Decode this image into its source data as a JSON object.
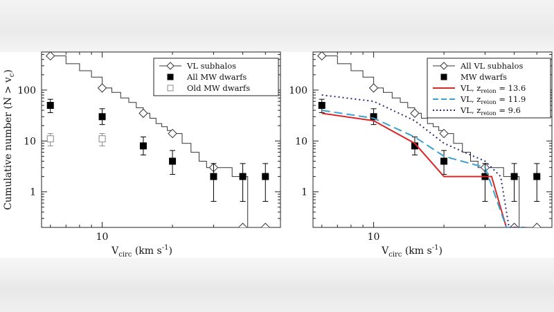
{
  "chart_data": [
    {
      "type": "scatter",
      "log_x": true,
      "log_y": true,
      "xlim": [
        5.5,
        58
      ],
      "ylim": [
        0.2,
        560
      ],
      "xlabel": "V_circ (km s^-1)",
      "ylabel": "Cumulative number (N > v_c)",
      "x_tick_labels": [
        "10"
      ],
      "y_tick_labels": [
        "1",
        "10",
        "100"
      ],
      "legend_position": "top-right",
      "legend": [
        "VL subhalos",
        "All MW dwarfs",
        "Old MW dwarfs"
      ],
      "series": [
        {
          "name": "VL subhalos",
          "style": "line",
          "color": "#333333",
          "x": [
            6,
            7,
            8,
            9,
            10,
            11,
            12,
            13,
            14,
            15,
            16,
            17,
            18,
            19,
            20,
            22,
            24,
            26,
            28,
            30,
            33,
            36,
            38,
            40,
            42,
            48
          ],
          "y": [
            470,
            330,
            240,
            180,
            110,
            90,
            70,
            57,
            45,
            35,
            28,
            22,
            19,
            16,
            14,
            9,
            6,
            4,
            3,
            3,
            3,
            2,
            2,
            2,
            0.2,
            0.2
          ]
        },
        {
          "name": "VL subhalos markers",
          "style": "diamond",
          "color": "#333333",
          "x": [
            6,
            10,
            15,
            20,
            30,
            40,
            50
          ],
          "y": [
            470,
            110,
            35,
            14,
            3,
            0.2,
            0.2
          ]
        },
        {
          "name": "All MW dwarfs",
          "style": "filled-square",
          "color": "#000000",
          "x": [
            6,
            10,
            15,
            20,
            30,
            40,
            50
          ],
          "y": [
            50,
            30,
            8,
            4,
            2,
            2,
            2
          ],
          "err_lo": [
            36,
            21,
            5.3,
            2.2,
            0.65,
            0.65,
            0.65
          ],
          "err_hi": [
            66,
            43,
            12,
            6.5,
            3.6,
            3.6,
            3.6
          ]
        },
        {
          "name": "Old MW dwarfs",
          "style": "open-square",
          "color": "#888888",
          "x": [
            6,
            10
          ],
          "y": [
            11,
            11
          ],
          "err_lo": [
            8,
            8
          ],
          "err_hi": [
            14,
            14
          ]
        }
      ]
    },
    {
      "type": "scatter",
      "log_x": true,
      "log_y": true,
      "xlim": [
        5.5,
        58
      ],
      "ylim": [
        0.2,
        560
      ],
      "xlabel": "V_circ (km s^-1)",
      "x_tick_labels": [
        "10"
      ],
      "y_tick_labels": [
        "1",
        "10",
        "100"
      ],
      "legend_position": "top-right",
      "legend": [
        "All VL subhalos",
        "MW dwarfs",
        "VL, z_reion = 13.6",
        "VL, z_reion = 11.9",
        "VL, z_reion = 9.6"
      ],
      "series": [
        {
          "name": "All VL subhalos",
          "style": "line",
          "color": "#333333",
          "x": [
            6,
            7,
            8,
            9,
            10,
            11,
            12,
            13,
            14,
            15,
            16,
            17,
            18,
            19,
            20,
            22,
            24,
            26,
            28,
            30,
            33,
            36,
            38,
            40,
            42,
            48
          ],
          "y": [
            470,
            330,
            240,
            180,
            110,
            90,
            70,
            57,
            45,
            35,
            28,
            22,
            19,
            16,
            14,
            9,
            6,
            4,
            3,
            3,
            3,
            2,
            2,
            2,
            0.2,
            0.2
          ]
        },
        {
          "name": "All VL subhalos markers",
          "style": "diamond",
          "color": "#333333",
          "x": [
            6,
            10,
            15,
            20,
            30,
            40,
            50
          ],
          "y": [
            470,
            110,
            35,
            14,
            3,
            0.2,
            0.2
          ]
        },
        {
          "name": "MW dwarfs",
          "style": "filled-square",
          "color": "#000000",
          "x": [
            6,
            10,
            15,
            20,
            30,
            40,
            50
          ],
          "y": [
            50,
            30,
            8,
            4,
            2,
            2,
            2
          ],
          "err_lo": [
            36,
            21,
            5.3,
            2.2,
            0.65,
            0.65,
            0.65
          ],
          "err_hi": [
            66,
            43,
            12,
            6.5,
            3.6,
            3.6,
            3.6
          ]
        },
        {
          "name": "VL, z_reion = 13.6",
          "style": "solid",
          "color": "#d62828",
          "x": [
            6,
            10,
            15,
            20,
            30,
            32,
            37,
            45
          ],
          "y": [
            35,
            25,
            9,
            2,
            2,
            2,
            0.2,
            0.2
          ]
        },
        {
          "name": "VL, z_reion = 11.9",
          "style": "dashed",
          "color": "#3aa0d0",
          "x": [
            6,
            10,
            15,
            20,
            30,
            31,
            37,
            45
          ],
          "y": [
            40,
            28,
            12,
            5,
            3,
            2,
            0.2,
            0.2
          ]
        },
        {
          "name": "VL, z_reion = 9.6",
          "style": "dotted",
          "color": "#2a2a7a",
          "x": [
            6,
            10,
            15,
            20,
            30,
            35,
            38,
            45
          ],
          "y": [
            80,
            60,
            25,
            9,
            4,
            2,
            0.2,
            0.2
          ]
        }
      ]
    }
  ]
}
